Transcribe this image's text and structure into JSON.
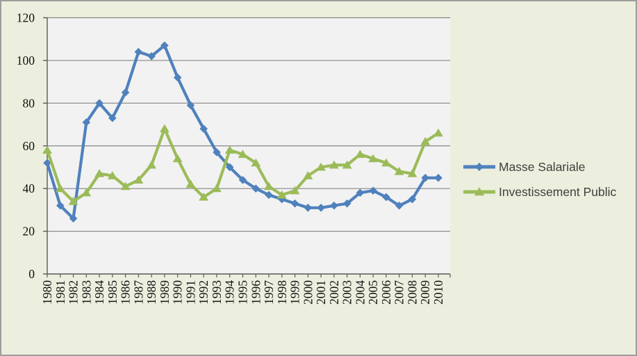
{
  "window": {
    "background": "#ECEFDD",
    "border_color": "#9D9D9D"
  },
  "chart_data": {
    "type": "line",
    "title": "",
    "xlabel": "",
    "ylabel": "",
    "x": [
      1980,
      1981,
      1982,
      1983,
      1984,
      1985,
      1986,
      1987,
      1988,
      1989,
      1990,
      1991,
      1992,
      1993,
      1994,
      1995,
      1996,
      1997,
      1998,
      1999,
      2000,
      2001,
      2002,
      2003,
      2004,
      2005,
      2006,
      2007,
      2008,
      2009,
      2010
    ],
    "series": [
      {
        "name": "Masse Salariale",
        "color": "#4F81BD",
        "marker": "diamond",
        "values": [
          52,
          32,
          26,
          71,
          80,
          73,
          85,
          104,
          102,
          107,
          92,
          79,
          68,
          57,
          50,
          44,
          40,
          37,
          35,
          33,
          31,
          31,
          32,
          33,
          38,
          39,
          36,
          32,
          35,
          45,
          45
        ]
      },
      {
        "name": "Investissement Public",
        "color": "#9BBB59",
        "marker": "triangle",
        "values": [
          58,
          40,
          34,
          38,
          47,
          46,
          41,
          44,
          51,
          68,
          54,
          42,
          36,
          40,
          58,
          56,
          52,
          41,
          37,
          39,
          46,
          50,
          51,
          51,
          56,
          54,
          52,
          48,
          47,
          62,
          66
        ]
      }
    ],
    "ylim": [
      0,
      120
    ],
    "ytick_step": 20,
    "yticks": [
      0,
      20,
      40,
      60,
      80,
      100,
      120
    ],
    "grid": true,
    "legend_position": "right",
    "plot_background": "#F2F2F2",
    "gridline_color": "#868686",
    "axis_color": "#595959",
    "tick_label_color": "#111111",
    "legend_text_color": "#3F3F3F"
  }
}
